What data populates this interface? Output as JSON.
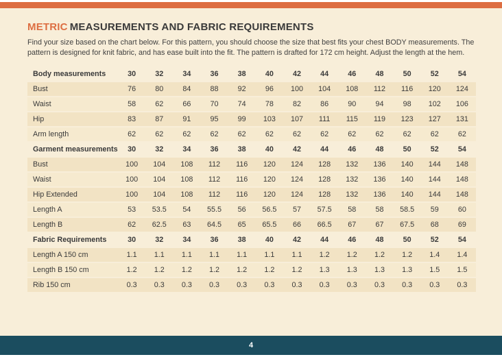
{
  "page": {
    "title_highlight": "METRIC",
    "title_rest": "MEASUREMENTS AND FABRIC REQUIREMENTS",
    "intro": "Find your size based on the chart below. For this pattern, you should choose the size that best fits your chest BODY measurements. The pattern is designed for knit fabric, and has ease built into the fit. The pattern is drafted for 172 cm height.  Adjust the length at the hem.",
    "page_number": "4"
  },
  "colors": {
    "accent_orange": "#DD6E42",
    "footer_teal": "#1B4D5F",
    "page_background": "#F8EED9",
    "row_dark": "#F2E3C4",
    "row_light": "#F6EACF",
    "text": "#3A3A3A"
  },
  "table": {
    "sizes": [
      "30",
      "32",
      "34",
      "36",
      "38",
      "40",
      "42",
      "44",
      "46",
      "48",
      "50",
      "52",
      "54"
    ],
    "rows": [
      {
        "label": "Body measurements",
        "type": "header",
        "values": [
          "30",
          "32",
          "34",
          "36",
          "38",
          "40",
          "42",
          "44",
          "46",
          "48",
          "50",
          "52",
          "54"
        ]
      },
      {
        "label": "Bust",
        "type": "data",
        "values": [
          "76",
          "80",
          "84",
          "88",
          "92",
          "96",
          "100",
          "104",
          "108",
          "112",
          "116",
          "120",
          "124"
        ]
      },
      {
        "label": "Waist",
        "type": "data",
        "values": [
          "58",
          "62",
          "66",
          "70",
          "74",
          "78",
          "82",
          "86",
          "90",
          "94",
          "98",
          "102",
          "106"
        ]
      },
      {
        "label": "Hip",
        "type": "data",
        "values": [
          "83",
          "87",
          "91",
          "95",
          "99",
          "103",
          "107",
          "111",
          "115",
          "119",
          "123",
          "127",
          "131"
        ]
      },
      {
        "label": "Arm length",
        "type": "data",
        "values": [
          "62",
          "62",
          "62",
          "62",
          "62",
          "62",
          "62",
          "62",
          "62",
          "62",
          "62",
          "62",
          "62"
        ]
      },
      {
        "label": "Garment measurements",
        "type": "header",
        "values": [
          "30",
          "32",
          "34",
          "36",
          "38",
          "40",
          "42",
          "44",
          "46",
          "48",
          "50",
          "52",
          "54"
        ]
      },
      {
        "label": "Bust",
        "type": "data",
        "values": [
          "100",
          "104",
          "108",
          "112",
          "116",
          "120",
          "124",
          "128",
          "132",
          "136",
          "140",
          "144",
          "148"
        ]
      },
      {
        "label": "Waist",
        "type": "data",
        "values": [
          "100",
          "104",
          "108",
          "112",
          "116",
          "120",
          "124",
          "128",
          "132",
          "136",
          "140",
          "144",
          "148"
        ]
      },
      {
        "label": "Hip Extended",
        "type": "data",
        "values": [
          "100",
          "104",
          "108",
          "112",
          "116",
          "120",
          "124",
          "128",
          "132",
          "136",
          "140",
          "144",
          "148"
        ]
      },
      {
        "label": "Length A",
        "type": "data",
        "values": [
          "53",
          "53.5",
          "54",
          "55.5",
          "56",
          "56.5",
          "57",
          "57.5",
          "58",
          "58",
          "58.5",
          "59",
          "60"
        ]
      },
      {
        "label": "Length B",
        "type": "data",
        "values": [
          "62",
          "62.5",
          "63",
          "64.5",
          "65",
          "65.5",
          "66",
          "66.5",
          "67",
          "67",
          "67.5",
          "68",
          "69"
        ]
      },
      {
        "label": "Fabric Requirements",
        "type": "header",
        "values": [
          "30",
          "32",
          "34",
          "36",
          "38",
          "40",
          "42",
          "44",
          "46",
          "48",
          "50",
          "52",
          "54"
        ]
      },
      {
        "label": "Length A 150 cm",
        "type": "data",
        "values": [
          "1.1",
          "1.1",
          "1.1",
          "1.1",
          "1.1",
          "1.1",
          "1.1",
          "1.2",
          "1.2",
          "1.2",
          "1.2",
          "1.4",
          "1.4"
        ]
      },
      {
        "label": "Length B 150 cm",
        "type": "data",
        "values": [
          "1.2",
          "1.2",
          "1.2",
          "1.2",
          "1.2",
          "1.2",
          "1.2",
          "1.3",
          "1.3",
          "1.3",
          "1.3",
          "1.5",
          "1.5"
        ]
      },
      {
        "label": "Rib 150 cm",
        "type": "data",
        "values": [
          "0.3",
          "0.3",
          "0.3",
          "0.3",
          "0.3",
          "0.3",
          "0.3",
          "0.3",
          "0.3",
          "0.3",
          "0.3",
          "0.3",
          "0.3"
        ]
      }
    ]
  }
}
